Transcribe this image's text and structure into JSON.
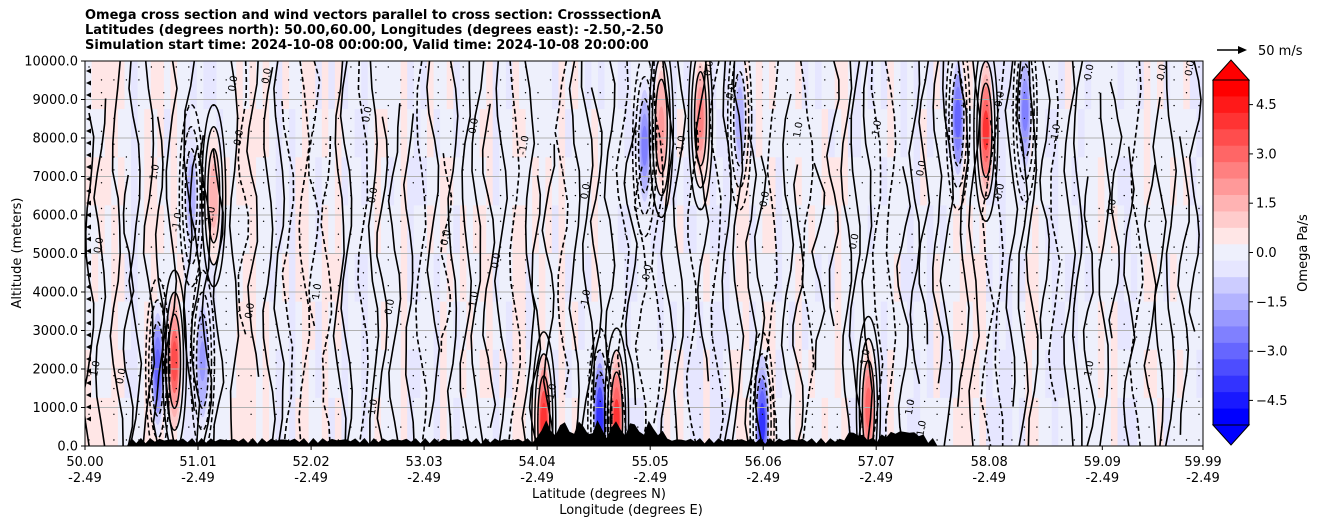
{
  "chart_data": {
    "type": "cross-section-contour",
    "title_lines": [
      "Omega cross section and wind vectors parallel to cross section: CrosssectionA",
      "Latitudes (degrees north): 50.00,60.00, Longitudes (degrees east): -2.50,-2.50",
      "Simulation start time: 2024-10-08 00:00:00, Valid time: 2024-10-08 20:00:00"
    ],
    "ylabel": "Altitude (meters)",
    "xlabel_line1": "Latitude (degrees N)",
    "xlabel_line2": "Longitude (degrees E)",
    "ylim": [
      0,
      10000
    ],
    "y_ticks": [
      "0.0",
      "1000.0",
      "2000.0",
      "3000.0",
      "4000.0",
      "5000.0",
      "6000.0",
      "7000.0",
      "8000.0",
      "9000.0",
      "10000.0"
    ],
    "x_range": [
      50.0,
      59.99
    ],
    "x_ticks": [
      {
        "lat": "50.00",
        "lon": "-2.49"
      },
      {
        "lat": "51.01",
        "lon": "-2.49"
      },
      {
        "lat": "52.02",
        "lon": "-2.49"
      },
      {
        "lat": "53.03",
        "lon": "-2.49"
      },
      {
        "lat": "54.04",
        "lon": "-2.49"
      },
      {
        "lat": "55.05",
        "lon": "-2.49"
      },
      {
        "lat": "56.06",
        "lon": "-2.49"
      },
      {
        "lat": "57.07",
        "lon": "-2.49"
      },
      {
        "lat": "58.08",
        "lon": "-2.49"
      },
      {
        "lat": "59.09",
        "lon": "-2.49"
      },
      {
        "lat": "59.99",
        "lon": "-2.49"
      }
    ],
    "colorbar": {
      "label": "Omega Pa/s",
      "range": [
        -5.25,
        5.25
      ],
      "ticks": [
        "4.5",
        "3.0",
        "1.5",
        "0.0",
        "−1.5",
        "−3.0",
        "−4.5"
      ],
      "tick_values": [
        4.5,
        3.0,
        1.5,
        0.0,
        -1.5,
        -3.0,
        -4.5
      ],
      "levels": 21,
      "positive_color": "#ff0000",
      "negative_color": "#0000ff",
      "neutral_color": "#ffffff",
      "extend": "both"
    },
    "vector_key": {
      "label": "50 m/s"
    },
    "contour_labels": [
      {
        "text": "0.0",
        "lat": 50.15,
        "alt": 5200
      },
      {
        "text": "1.0",
        "lat": 50.12,
        "alt": 2000
      },
      {
        "text": "0.0",
        "lat": 50.35,
        "alt": 1800
      },
      {
        "text": "1.0",
        "lat": 50.65,
        "alt": 7100
      },
      {
        "text": "-1.0",
        "lat": 50.85,
        "alt": 5800
      },
      {
        "text": "1.0",
        "lat": 51.15,
        "alt": 6000
      },
      {
        "text": "0.0",
        "lat": 51.4,
        "alt": 8000
      },
      {
        "text": "0.0",
        "lat": 51.35,
        "alt": 9400
      },
      {
        "text": "0.0",
        "lat": 51.5,
        "alt": 3500
      },
      {
        "text": "0.0",
        "lat": 51.65,
        "alt": 9600
      },
      {
        "text": "1.0",
        "lat": 52.1,
        "alt": 4000
      },
      {
        "text": "0.0",
        "lat": 52.55,
        "alt": 8600
      },
      {
        "text": "0.0",
        "lat": 52.6,
        "alt": 6500
      },
      {
        "text": "1.0",
        "lat": 52.6,
        "alt": 1000
      },
      {
        "text": "0.0",
        "lat": 52.75,
        "alt": 3600
      },
      {
        "text": "0.0",
        "lat": 53.25,
        "alt": 5400
      },
      {
        "text": "0.0",
        "lat": 53.5,
        "alt": 8300
      },
      {
        "text": "1.0",
        "lat": 53.5,
        "alt": 3800
      },
      {
        "text": "0.0",
        "lat": 53.7,
        "alt": 4800
      },
      {
        "text": "-1.0",
        "lat": 53.95,
        "alt": 7800
      },
      {
        "text": "1.0",
        "lat": 54.2,
        "alt": 1400
      },
      {
        "text": "-1.0",
        "lat": 54.5,
        "alt": 3800
      },
      {
        "text": "0.0",
        "lat": 54.5,
        "alt": 6600
      },
      {
        "text": "0.0",
        "lat": 55.05,
        "alt": 4500
      },
      {
        "text": "0.0",
        "lat": 55.6,
        "alt": 9800
      },
      {
        "text": "0.0",
        "lat": 55.8,
        "alt": 9200
      },
      {
        "text": "-1.0",
        "lat": 55.35,
        "alt": 7800
      },
      {
        "text": "0.0",
        "lat": 56.1,
        "alt": 6400
      },
      {
        "text": "1.0",
        "lat": 56.4,
        "alt": 8200
      },
      {
        "text": "0.0",
        "lat": 56.9,
        "alt": 5300
      },
      {
        "text": "-1.0",
        "lat": 57.1,
        "alt": 8200
      },
      {
        "text": "1.0",
        "lat": 57.0,
        "alt": 2300
      },
      {
        "text": "0.0",
        "lat": 57.5,
        "alt": 7200
      },
      {
        "text": "1.0",
        "lat": 57.4,
        "alt": 1000
      },
      {
        "text": "0.0",
        "lat": 58.2,
        "alt": 6600
      },
      {
        "text": "0.0",
        "lat": 58.2,
        "alt": 9000
      },
      {
        "text": "-1.0",
        "lat": 58.7,
        "alt": 8100
      },
      {
        "text": "0.0",
        "lat": 59.0,
        "alt": 9700
      },
      {
        "text": "0.0",
        "lat": 59.2,
        "alt": 6200
      },
      {
        "text": "1.0",
        "lat": 59.0,
        "alt": 2000
      },
      {
        "text": "0.0",
        "lat": 59.9,
        "alt": 9800
      },
      {
        "text": "0.0",
        "lat": 59.65,
        "alt": 9700
      },
      {
        "text": "-1.0",
        "lat": 57.5,
        "alt": 400
      }
    ],
    "omega_cells": [
      {
        "lat": 50.65,
        "alt": 2000,
        "v": -3.5
      },
      {
        "lat": 50.8,
        "alt": 2200,
        "v": 4.2
      },
      {
        "lat": 51.05,
        "alt": 2200,
        "v": -2.5
      },
      {
        "lat": 51.15,
        "alt": 6500,
        "v": 2.0
      },
      {
        "lat": 50.95,
        "alt": 6500,
        "v": -2.0
      },
      {
        "lat": 54.1,
        "alt": 600,
        "v": 5.0
      },
      {
        "lat": 54.6,
        "alt": 700,
        "v": -5.0
      },
      {
        "lat": 54.75,
        "alt": 700,
        "v": 4.8
      },
      {
        "lat": 55.0,
        "alt": 7800,
        "v": -3.0
      },
      {
        "lat": 55.15,
        "alt": 8300,
        "v": 2.5
      },
      {
        "lat": 55.5,
        "alt": 8500,
        "v": 3.0
      },
      {
        "lat": 55.85,
        "alt": 8500,
        "v": -2.0
      },
      {
        "lat": 56.05,
        "alt": 600,
        "v": -4.8
      },
      {
        "lat": 57.0,
        "alt": 1000,
        "v": 3.5
      },
      {
        "lat": 57.8,
        "alt": 8500,
        "v": -3.5
      },
      {
        "lat": 58.05,
        "alt": 8200,
        "v": 4.5
      },
      {
        "lat": 58.4,
        "alt": 8700,
        "v": -2.8
      }
    ]
  }
}
